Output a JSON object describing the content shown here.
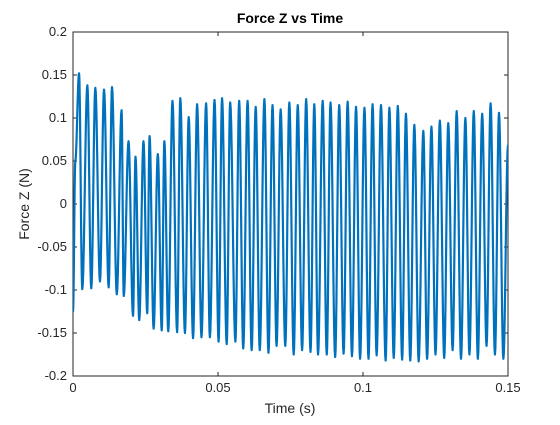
{
  "chart_data": {
    "type": "line",
    "title": "Force Z vs Time",
    "xlabel": "Time (s)",
    "ylabel": "Force Z (N)",
    "xlim": [
      0,
      0.15
    ],
    "ylim": [
      -0.2,
      0.2
    ],
    "xticks": [
      0,
      0.05,
      0.1,
      0.15
    ],
    "xtick_labels": [
      "0",
      "0.05",
      "0.1",
      "0.15"
    ],
    "yticks": [
      -0.2,
      -0.15,
      -0.1,
      -0.05,
      0,
      0.05,
      0.1,
      0.15,
      0.2
    ],
    "ytick_labels": [
      "-0.2",
      "-0.15",
      "-0.1",
      "-0.05",
      "0",
      "0.05",
      "0.1",
      "0.15",
      "0.2"
    ],
    "grid": false,
    "box": true,
    "line_color": "#0072BD",
    "series": [
      {
        "x": [
          0,
          0.0008,
          0.00209,
          0.0032,
          0.00495,
          0.0063,
          0.0077,
          0.0093,
          0.0107,
          0.0123,
          0.01345,
          0.0151,
          0.01675,
          0.0175,
          0.01915,
          0.0207,
          0.02155,
          0.02285,
          0.0243,
          0.0256,
          0.0264,
          0.0278,
          0.02925,
          0.0306,
          0.0315,
          0.03285,
          0.0343,
          0.0359,
          0.037,
          0.0386,
          0.0399,
          0.0414,
          0.0428,
          0.0443,
          0.0459,
          0.0472,
          0.0488,
          0.0502,
          0.0514,
          0.053,
          0.0542,
          0.056,
          0.0573,
          0.0587,
          0.0602,
          0.0616,
          0.063,
          0.0644,
          0.066,
          0.0674,
          0.0688,
          0.0702,
          0.0716,
          0.0732,
          0.0746,
          0.0761,
          0.0775,
          0.079,
          0.0804,
          0.0819,
          0.0832,
          0.0845,
          0.0861,
          0.0875,
          0.0888,
          0.0904,
          0.0918,
          0.0933,
          0.0947,
          0.0962,
          0.0976,
          0.099,
          0.1005,
          0.1019,
          0.1033,
          0.1047,
          0.1062,
          0.1078,
          0.1091,
          0.1106,
          0.112,
          0.1135,
          0.1148,
          0.1163,
          0.1177,
          0.1192,
          0.1208,
          0.1221,
          0.1236,
          0.125,
          0.1265,
          0.128,
          0.1294,
          0.1309,
          0.1323,
          0.1338,
          0.1353,
          0.1367,
          0.1382,
          0.1396,
          0.1411,
          0.1426,
          0.144,
          0.1455,
          0.1469,
          0.1484,
          0.15
        ],
        "y": [
          -0.125,
          0.05,
          0.152,
          -0.099,
          0.138,
          -0.098,
          0.135,
          -0.09,
          0.133,
          -0.097,
          0.136,
          -0.105,
          0.109,
          -0.107,
          0.073,
          -0.13,
          0.055,
          -0.135,
          0.073,
          -0.127,
          0.079,
          -0.145,
          0.058,
          -0.147,
          0.073,
          -0.148,
          0.12,
          -0.149,
          0.123,
          -0.15,
          0.101,
          -0.156,
          0.116,
          -0.155,
          0.117,
          -0.155,
          0.121,
          -0.16,
          0.123,
          -0.163,
          0.118,
          -0.16,
          0.12,
          -0.168,
          0.12,
          -0.17,
          0.113,
          -0.17,
          0.122,
          -0.173,
          0.115,
          -0.165,
          0.11,
          -0.165,
          0.118,
          -0.175,
          0.115,
          -0.17,
          0.122,
          -0.172,
          0.116,
          -0.175,
          0.12,
          -0.175,
          0.118,
          -0.178,
          0.115,
          -0.174,
          0.119,
          -0.177,
          0.113,
          -0.18,
          0.112,
          -0.18,
          0.116,
          -0.176,
          0.115,
          -0.182,
          0.112,
          -0.179,
          0.114,
          -0.181,
          0.105,
          -0.182,
          0.092,
          -0.183,
          0.085,
          -0.18,
          0.09,
          -0.175,
          0.097,
          -0.179,
          0.094,
          -0.17,
          0.108,
          -0.18,
          0.1,
          -0.175,
          0.108,
          -0.18,
          0.105,
          -0.165,
          0.117,
          -0.175,
          0.106,
          -0.18,
          0.068
        ]
      }
    ]
  }
}
